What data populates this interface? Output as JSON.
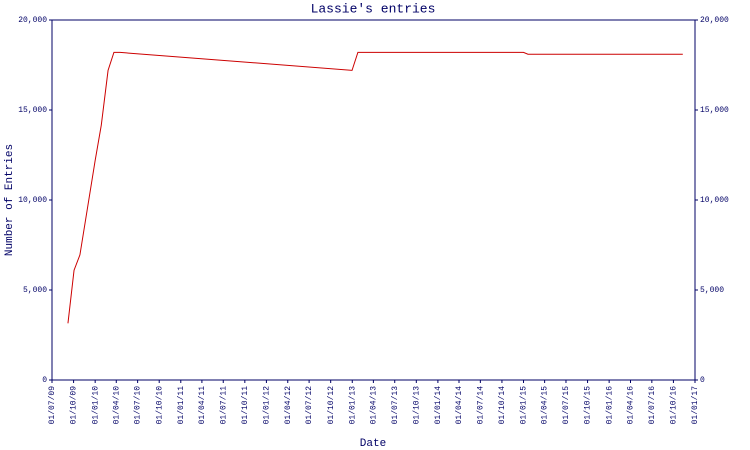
{
  "chart_data": {
    "type": "line",
    "title": "Lassie's entries",
    "x_label": "Date",
    "y_label": "Number of Entries",
    "x": [
      "2009-09-07",
      "2009-10-03",
      "2009-10-28",
      "2010-01-01",
      "2010-01-27",
      "2010-02-25",
      "2010-03-22",
      "2010-04-17",
      "2012-12-31",
      "2013-01-25",
      "2015-01-01",
      "2015-01-20",
      "2016-11-10"
    ],
    "series": [
      {
        "name": "Entries",
        "color": "#cc0000",
        "values": [
          3150,
          6100,
          6950,
          12200,
          14150,
          17200,
          18200,
          18200,
          17200,
          18200,
          18200,
          18100,
          18100
        ]
      }
    ],
    "xlim": [
      "2009-07-01",
      "2017-01-01"
    ],
    "xticks": [
      {
        "value": "2009-07-01",
        "label": "01/07/09"
      },
      {
        "value": "2009-10-01",
        "label": "01/10/09"
      },
      {
        "value": "2010-01-01",
        "label": "01/01/10"
      },
      {
        "value": "2010-04-01",
        "label": "01/04/10"
      },
      {
        "value": "2010-07-01",
        "label": "01/07/10"
      },
      {
        "value": "2010-10-01",
        "label": "01/10/10"
      },
      {
        "value": "2011-01-01",
        "label": "01/01/11"
      },
      {
        "value": "2011-04-01",
        "label": "01/04/11"
      },
      {
        "value": "2011-07-01",
        "label": "01/07/11"
      },
      {
        "value": "2011-10-01",
        "label": "01/10/11"
      },
      {
        "value": "2012-01-01",
        "label": "01/01/12"
      },
      {
        "value": "2012-04-01",
        "label": "01/04/12"
      },
      {
        "value": "2012-07-01",
        "label": "01/07/12"
      },
      {
        "value": "2012-10-01",
        "label": "01/10/12"
      },
      {
        "value": "2013-01-01",
        "label": "01/01/13"
      },
      {
        "value": "2013-04-01",
        "label": "01/04/13"
      },
      {
        "value": "2013-07-01",
        "label": "01/07/13"
      },
      {
        "value": "2013-10-01",
        "label": "01/10/13"
      },
      {
        "value": "2014-01-01",
        "label": "01/01/14"
      },
      {
        "value": "2014-04-01",
        "label": "01/04/14"
      },
      {
        "value": "2014-07-01",
        "label": "01/07/14"
      },
      {
        "value": "2014-10-01",
        "label": "01/10/14"
      },
      {
        "value": "2015-01-01",
        "label": "01/01/15"
      },
      {
        "value": "2015-04-01",
        "label": "01/04/15"
      },
      {
        "value": "2015-07-01",
        "label": "01/07/15"
      },
      {
        "value": "2015-10-01",
        "label": "01/10/15"
      },
      {
        "value": "2016-01-01",
        "label": "01/01/16"
      },
      {
        "value": "2016-04-01",
        "label": "01/04/16"
      },
      {
        "value": "2016-07-01",
        "label": "01/07/16"
      },
      {
        "value": "2016-10-01",
        "label": "01/10/16"
      },
      {
        "value": "2017-01-01",
        "label": "01/01/17"
      }
    ],
    "ylim": [
      0,
      20000
    ],
    "yticks": [
      0,
      {
        "value": 5000,
        "label": "5,000"
      },
      {
        "value": 10000,
        "label": "10,000"
      },
      {
        "value": 15000,
        "label": "15,000"
      },
      {
        "value": 20000,
        "label": "20,000"
      }
    ],
    "y2lim": [
      0,
      20000
    ],
    "y2ticks": [
      0,
      {
        "value": 5000,
        "label": "5,000"
      },
      {
        "value": 10000,
        "label": "10,000"
      },
      {
        "value": 15000,
        "label": "15,000"
      },
      {
        "value": 20000,
        "label": "20,000"
      }
    ],
    "axis_color": "#000066",
    "grid": false
  }
}
